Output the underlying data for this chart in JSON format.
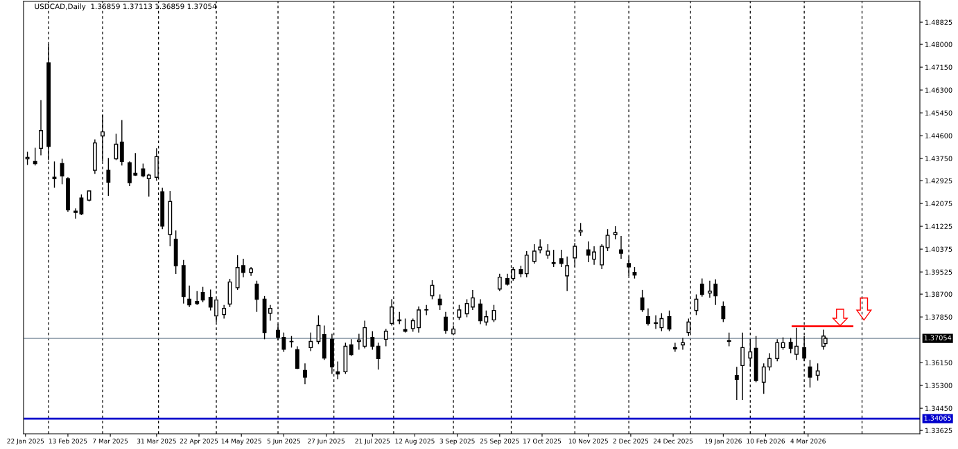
{
  "chart_data": {
    "type": "candlestick",
    "title": "USDCAD,Daily  1.36859 1.37113 1.36859 1.37054",
    "x": [
      "2025-01-23",
      "2025-01-27",
      "2025-01-30",
      "2025-02-03",
      "2025-02-06",
      "2025-02-10",
      "2025-02-13",
      "2025-02-17",
      "2025-02-20",
      "2025-02-24",
      "2025-02-27",
      "2025-03-03",
      "2025-03-06",
      "2025-03-10",
      "2025-03-13",
      "2025-03-17",
      "2025-03-20",
      "2025-03-24",
      "2025-03-27",
      "2025-03-31",
      "2025-04-03",
      "2025-04-07",
      "2025-04-10",
      "2025-04-14",
      "2025-04-17",
      "2025-04-21",
      "2025-04-24",
      "2025-04-28",
      "2025-05-01",
      "2025-05-05",
      "2025-05-08",
      "2025-05-12",
      "2025-05-15",
      "2025-05-19",
      "2025-05-22",
      "2025-05-26",
      "2025-05-29",
      "2025-06-02",
      "2025-06-05",
      "2025-06-09",
      "2025-06-12",
      "2025-06-16",
      "2025-06-19",
      "2025-06-23",
      "2025-06-26",
      "2025-06-30",
      "2025-07-03",
      "2025-07-07",
      "2025-07-10",
      "2025-07-14",
      "2025-07-17",
      "2025-07-21",
      "2025-07-24",
      "2025-07-28",
      "2025-07-31",
      "2025-08-04",
      "2025-08-07",
      "2025-08-11",
      "2025-08-14",
      "2025-08-18",
      "2025-08-21",
      "2025-08-25",
      "2025-08-28",
      "2025-09-01",
      "2025-09-04",
      "2025-09-08",
      "2025-09-11",
      "2025-09-15",
      "2025-09-18",
      "2025-09-22",
      "2025-09-25",
      "2025-09-29",
      "2025-10-02",
      "2025-10-06",
      "2025-10-09",
      "2025-10-13",
      "2025-10-16",
      "2025-10-20",
      "2025-10-23",
      "2025-10-27",
      "2025-10-30",
      "2025-11-03",
      "2025-11-06",
      "2025-11-10",
      "2025-11-13",
      "2025-11-17",
      "2025-11-20",
      "2025-11-24",
      "2025-11-27",
      "2025-12-01",
      "2025-12-04",
      "2025-12-08",
      "2025-12-11",
      "2025-12-15",
      "2025-12-18",
      "2025-12-22",
      "2025-12-25",
      "2025-12-29",
      "2026-01-01",
      "2026-01-05",
      "2026-01-08",
      "2026-01-12",
      "2026-01-15",
      "2026-01-19",
      "2026-01-22",
      "2026-01-26",
      "2026-01-29",
      "2026-02-02",
      "2026-02-05",
      "2026-02-09",
      "2026-02-12",
      "2026-02-16",
      "2026-02-19",
      "2026-02-23",
      "2026-02-26",
      "2026-03-02",
      "2026-03-05",
      "2026-03-09",
      "2026-03-12",
      "2026-03-13"
    ],
    "ohlc": [
      [
        1.4374,
        1.44,
        1.4351,
        1.4379
      ],
      [
        1.4364,
        1.4415,
        1.4349,
        1.4356
      ],
      [
        1.4413,
        1.4592,
        1.4387,
        1.4479
      ],
      [
        1.4731,
        1.48,
        1.4369,
        1.442
      ],
      [
        1.4305,
        1.4364,
        1.4266,
        1.43
      ],
      [
        1.4356,
        1.4374,
        1.4279,
        1.431
      ],
      [
        1.43,
        1.4305,
        1.4177,
        1.4184
      ],
      [
        1.4179,
        1.4189,
        1.4151,
        1.4174
      ],
      [
        1.4228,
        1.4241,
        1.4164,
        1.4169
      ],
      [
        1.422,
        1.4254,
        1.4215,
        1.4254
      ],
      [
        1.4331,
        1.4446,
        1.4318,
        1.4433
      ],
      [
        1.4459,
        1.4539,
        1.4364,
        1.4474
      ],
      [
        1.4331,
        1.4377,
        1.4236,
        1.4287
      ],
      [
        1.4374,
        1.4467,
        1.4369,
        1.4428
      ],
      [
        1.4436,
        1.4518,
        1.4349,
        1.4364
      ],
      [
        1.4359,
        1.4364,
        1.4272,
        1.4285
      ],
      [
        1.432,
        1.4395,
        1.431,
        1.4313
      ],
      [
        1.4336,
        1.4356,
        1.4305,
        1.431
      ],
      [
        1.43,
        1.4318,
        1.4233,
        1.4313
      ],
      [
        1.4305,
        1.4413,
        1.4292,
        1.4382
      ],
      [
        1.4251,
        1.4266,
        1.4112,
        1.4123
      ],
      [
        1.4092,
        1.4254,
        1.4048,
        1.4215
      ],
      [
        1.4074,
        1.4107,
        1.3945,
        1.3976
      ],
      [
        1.3976,
        1.3997,
        1.3835,
        1.3861
      ],
      [
        1.3851,
        1.3902,
        1.3822,
        1.383
      ],
      [
        1.3843,
        1.3881,
        1.383,
        1.3835
      ],
      [
        1.3876,
        1.3897,
        1.384,
        1.3848
      ],
      [
        1.3858,
        1.3887,
        1.3809,
        1.3822
      ],
      [
        1.3789,
        1.3851,
        1.3766,
        1.3848
      ],
      [
        1.3794,
        1.383,
        1.3779,
        1.3817
      ],
      [
        1.3833,
        1.3927,
        1.3822,
        1.3915
      ],
      [
        1.3894,
        1.4015,
        1.3886,
        1.3969
      ],
      [
        1.3976,
        1.4002,
        1.3933,
        1.3951
      ],
      [
        1.3951,
        1.3971,
        1.3938,
        1.3964
      ],
      [
        1.3907,
        1.392,
        1.3804,
        1.3851
      ],
      [
        1.3851,
        1.3863,
        1.3702,
        1.3727
      ],
      [
        1.3799,
        1.383,
        1.3771,
        1.3817
      ],
      [
        1.3735,
        1.3758,
        1.3697,
        1.3709
      ],
      [
        1.3709,
        1.3727,
        1.3655,
        1.3665
      ],
      [
        1.3693,
        1.3714,
        1.3671,
        1.3694
      ],
      [
        1.3663,
        1.3676,
        1.3591,
        1.3594
      ],
      [
        1.3586,
        1.3612,
        1.3535,
        1.3561
      ],
      [
        1.3671,
        1.3727,
        1.3658,
        1.3694
      ],
      [
        1.3694,
        1.3791,
        1.3684,
        1.3753
      ],
      [
        1.3719,
        1.3753,
        1.3625,
        1.3632
      ],
      [
        1.3702,
        1.3722,
        1.3573,
        1.3599
      ],
      [
        1.3581,
        1.3619,
        1.3553,
        1.3573
      ],
      [
        1.3581,
        1.3689,
        1.3573,
        1.3676
      ],
      [
        1.3681,
        1.3702,
        1.364,
        1.3645
      ],
      [
        1.3694,
        1.3722,
        1.3663,
        1.3699
      ],
      [
        1.3676,
        1.3771,
        1.3668,
        1.3745
      ],
      [
        1.3709,
        1.3732,
        1.3663,
        1.3676
      ],
      [
        1.3676,
        1.3689,
        1.3589,
        1.363
      ],
      [
        1.3702,
        1.374,
        1.3676,
        1.3732
      ],
      [
        1.3761,
        1.3851,
        1.3753,
        1.3822
      ],
      [
        1.3774,
        1.3804,
        1.3758,
        1.3771
      ],
      [
        1.3738,
        1.3779,
        1.3727,
        1.3732
      ],
      [
        1.3742,
        1.3779,
        1.373,
        1.3771
      ],
      [
        1.3745,
        1.3824,
        1.3727,
        1.3811
      ],
      [
        1.3811,
        1.383,
        1.3792,
        1.3812
      ],
      [
        1.3864,
        1.3922,
        1.3851,
        1.3903
      ],
      [
        1.3851,
        1.3869,
        1.3811,
        1.383
      ],
      [
        1.3784,
        1.3804,
        1.3722,
        1.3735
      ],
      [
        1.3722,
        1.3753,
        1.372,
        1.374
      ],
      [
        1.3784,
        1.383,
        1.3774,
        1.3811
      ],
      [
        1.3797,
        1.3851,
        1.3784,
        1.3835
      ],
      [
        1.3822,
        1.3886,
        1.3811,
        1.3856
      ],
      [
        1.3833,
        1.3851,
        1.3758,
        1.3771
      ],
      [
        1.3766,
        1.3809,
        1.3753,
        1.3786
      ],
      [
        1.3774,
        1.383,
        1.3766,
        1.3809
      ],
      [
        1.3889,
        1.3946,
        1.3881,
        1.3933
      ],
      [
        1.3928,
        1.3946,
        1.3902,
        1.3907
      ],
      [
        1.3928,
        1.3971,
        1.392,
        1.3961
      ],
      [
        1.3961,
        1.3976,
        1.3933,
        1.3946
      ],
      [
        1.3946,
        1.403,
        1.3933,
        1.4015
      ],
      [
        1.3992,
        1.4056,
        1.3984,
        1.403
      ],
      [
        1.4035,
        1.4074,
        1.4022,
        1.4045
      ],
      [
        1.4015,
        1.4056,
        1.4002,
        1.403
      ],
      [
        1.3987,
        1.4035,
        1.3971,
        1.3984
      ],
      [
        1.4002,
        1.4035,
        1.3971,
        1.3984
      ],
      [
        1.3938,
        1.401,
        1.3881,
        1.3976
      ],
      [
        1.4005,
        1.4061,
        1.3971,
        1.4048
      ],
      [
        1.4102,
        1.4135,
        1.4087,
        1.4107
      ],
      [
        1.4035,
        1.4066,
        1.3989,
        1.4015
      ],
      [
        1.4,
        1.4048,
        1.3979,
        1.4027
      ],
      [
        1.3979,
        1.4056,
        1.3963,
        1.4048
      ],
      [
        1.4043,
        1.4112,
        1.403,
        1.4089
      ],
      [
        1.4092,
        1.4123,
        1.4074,
        1.4099
      ],
      [
        1.4035,
        1.4087,
        1.4002,
        1.4022
      ],
      [
        1.3984,
        1.401,
        1.3938,
        1.3971
      ],
      [
        1.3951,
        1.3971,
        1.3928,
        1.3941
      ],
      [
        1.3856,
        1.3886,
        1.3804,
        1.3812
      ],
      [
        1.3786,
        1.3817,
        1.3753,
        1.3761
      ],
      [
        1.3763,
        1.3791,
        1.374,
        1.3761
      ],
      [
        1.3745,
        1.3799,
        1.3732,
        1.3779
      ],
      [
        1.3786,
        1.3809,
        1.3732,
        1.374
      ],
      [
        1.3671,
        1.3689,
        1.3655,
        1.3666
      ],
      [
        1.3681,
        1.3707,
        1.3663,
        1.3689
      ],
      [
        1.3727,
        1.3779,
        1.3714,
        1.3766
      ],
      [
        1.3809,
        1.3869,
        1.3792,
        1.3851
      ],
      [
        1.3907,
        1.3928,
        1.3861,
        1.3869
      ],
      [
        1.3874,
        1.392,
        1.3856,
        1.3881
      ],
      [
        1.3907,
        1.3925,
        1.383,
        1.3864
      ],
      [
        1.3825,
        1.3843,
        1.3766,
        1.3779
      ],
      [
        1.3694,
        1.3727,
        1.3676,
        1.3697
      ],
      [
        1.3567,
        1.3599,
        1.3476,
        1.3553
      ],
      [
        1.3604,
        1.3727,
        1.3476,
        1.3671
      ],
      [
        1.3632,
        1.3702,
        1.3599,
        1.3655
      ],
      [
        1.3668,
        1.3714,
        1.3542,
        1.3548
      ],
      [
        1.3542,
        1.3612,
        1.3499,
        1.3599
      ],
      [
        1.3599,
        1.365,
        1.3586,
        1.363
      ],
      [
        1.363,
        1.3702,
        1.362,
        1.3689
      ],
      [
        1.3671,
        1.3709,
        1.3663,
        1.3689
      ],
      [
        1.3691,
        1.3707,
        1.365,
        1.3668
      ],
      [
        1.3646,
        1.3745,
        1.3625,
        1.3676
      ],
      [
        1.3671,
        1.3714,
        1.362,
        1.3632
      ],
      [
        1.3599,
        1.3625,
        1.3522,
        1.3561
      ],
      [
        1.3568,
        1.3612,
        1.3548,
        1.3584
      ],
      [
        1.3676,
        1.3738,
        1.3663,
        1.3714
      ],
      [
        1.36859,
        1.37113,
        1.36859,
        1.37054
      ]
    ],
    "series": [
      {
        "type": "line",
        "color": "#ff0000",
        "x": [
          "2026-02-24",
          "2026-03-27"
        ],
        "values": [
          1.375,
          1.375
        ]
      }
    ],
    "xlim": [
      "2025-01-21",
      "2026-05-01"
    ],
    "xticks": [
      {
        "value": "2025-01-22",
        "label": "22 Jan 2025"
      },
      {
        "value": "2025-02-13",
        "label": "13 Feb 2025"
      },
      {
        "value": "2025-03-07",
        "label": "7 Mar 2025"
      },
      {
        "value": "2025-03-31",
        "label": "31 Mar 2025"
      },
      {
        "value": "2025-04-22",
        "label": "22 Apr 2025"
      },
      {
        "value": "2025-05-14",
        "label": "14 May 2025"
      },
      {
        "value": "2025-06-05",
        "label": "5 Jun 2025"
      },
      {
        "value": "2025-06-27",
        "label": "27 Jun 2025"
      },
      {
        "value": "2025-07-21",
        "label": "21 Jul 2025"
      },
      {
        "value": "2025-08-12",
        "label": "12 Aug 2025"
      },
      {
        "value": "2025-09-03",
        "label": "3 Sep 2025"
      },
      {
        "value": "2025-09-25",
        "label": "25 Sep 2025"
      },
      {
        "value": "2025-10-17",
        "label": "17 Oct 2025"
      },
      {
        "value": "2025-11-10",
        "label": "10 Nov 2025"
      },
      {
        "value": "2025-12-02",
        "label": "2 Dec 2025"
      },
      {
        "value": "2025-12-24",
        "label": "24 Dec 2025"
      },
      {
        "value": "2026-01-19",
        "label": "19 Jan 2026"
      },
      {
        "value": "2026-02-10",
        "label": "10 Feb 2026"
      },
      {
        "value": "2026-03-04",
        "label": "4 Mar 2026"
      }
    ],
    "ylim": [
      1.335,
      1.496
    ],
    "yticks": [
      {
        "value": 1.48825,
        "label": "1.48825"
      },
      {
        "value": 1.48,
        "label": "1.48000"
      },
      {
        "value": 1.4715,
        "label": "1.47150"
      },
      {
        "value": 1.463,
        "label": "1.46300"
      },
      {
        "value": 1.4545,
        "label": "1.45450"
      },
      {
        "value": 1.446,
        "label": "1.44600"
      },
      {
        "value": 1.4375,
        "label": "1.43750"
      },
      {
        "value": 1.42925,
        "label": "1.42925"
      },
      {
        "value": 1.42075,
        "label": "1.42075"
      },
      {
        "value": 1.41225,
        "label": "1.41225"
      },
      {
        "value": 1.40375,
        "label": "1.40375"
      },
      {
        "value": 1.39525,
        "label": "1.39525"
      },
      {
        "value": 1.387,
        "label": "1.38700"
      },
      {
        "value": 1.3785,
        "label": "1.37850"
      },
      {
        "value": 1.3615,
        "label": "1.36150"
      },
      {
        "value": 1.353,
        "label": "1.35300"
      },
      {
        "value": 1.3445,
        "label": "1.34450"
      },
      {
        "value": 1.33625,
        "label": "1.33625"
      }
    ],
    "ref_lines": [
      {
        "axis": "y",
        "value": 1.37054,
        "label": "1.37054",
        "color": "#778899"
      },
      {
        "axis": "y",
        "value": 1.34065,
        "label": "1.34065",
        "color": "#0000cc"
      },
      {
        "axis": "x",
        "value": "2025-02-03",
        "color": "#000000",
        "line_style": "dashed"
      },
      {
        "axis": "x",
        "value": "2025-03-03",
        "color": "#000000",
        "line_style": "dashed"
      },
      {
        "axis": "x",
        "value": "2025-04-01",
        "color": "#000000",
        "line_style": "dashed"
      },
      {
        "axis": "x",
        "value": "2025-05-01",
        "color": "#000000",
        "line_style": "dashed"
      },
      {
        "axis": "x",
        "value": "2025-06-02",
        "color": "#000000",
        "line_style": "dashed"
      },
      {
        "axis": "x",
        "value": "2025-07-01",
        "color": "#000000",
        "line_style": "dashed"
      },
      {
        "axis": "x",
        "value": "2025-08-01",
        "color": "#000000",
        "line_style": "dashed"
      },
      {
        "axis": "x",
        "value": "2025-09-01",
        "color": "#000000",
        "line_style": "dashed"
      },
      {
        "axis": "x",
        "value": "2025-10-01",
        "color": "#000000",
        "line_style": "dashed"
      },
      {
        "axis": "x",
        "value": "2025-11-03",
        "color": "#000000",
        "line_style": "dashed"
      },
      {
        "axis": "x",
        "value": "2025-12-01",
        "color": "#000000",
        "line_style": "dashed"
      },
      {
        "axis": "x",
        "value": "2026-01-02",
        "color": "#000000",
        "line_style": "dashed"
      },
      {
        "axis": "x",
        "value": "2026-02-02",
        "color": "#000000",
        "line_style": "dashed"
      },
      {
        "axis": "x",
        "value": "2026-03-02",
        "color": "#000000",
        "line_style": "dashed"
      },
      {
        "axis": "x",
        "value": "2026-04-01",
        "color": "#000000",
        "line_style": "dashed"
      }
    ]
  }
}
